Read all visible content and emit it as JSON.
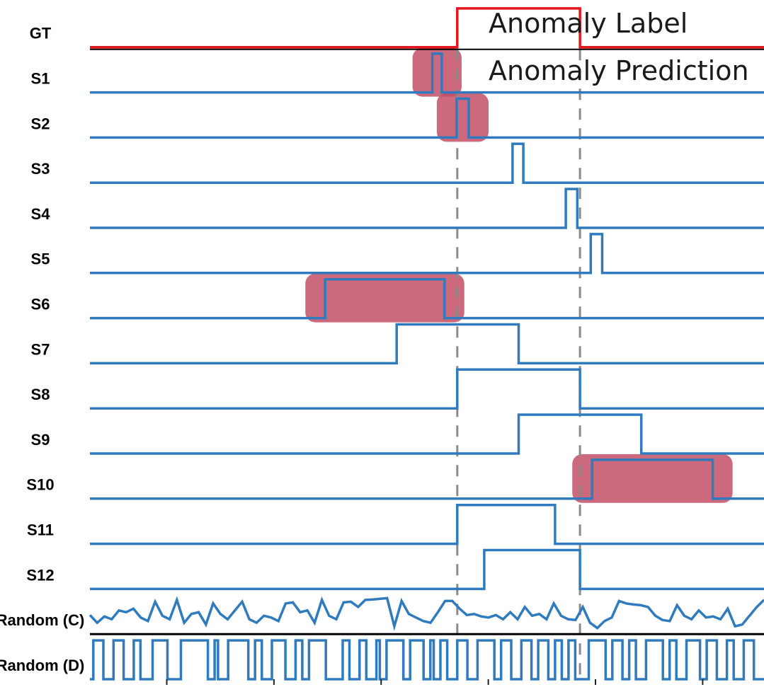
{
  "chart_data": {
    "type": "line",
    "style": "step",
    "legend": [
      {
        "label": "Anomaly Label",
        "color": "#e8141b"
      },
      {
        "label": "Anomaly Prediction",
        "color": "#2f7bbd"
      }
    ],
    "label_window": [
      0.545,
      0.727
    ],
    "highlight_color": "#c44f66",
    "series": [
      {
        "name": "GT",
        "color": "#e8141b",
        "intervals": [
          [
            0.545,
            0.727
          ]
        ]
      },
      {
        "name": "S1",
        "color": "#2f7bbd",
        "intervals": [
          [
            0.508,
            0.522
          ]
        ],
        "highlighted": true
      },
      {
        "name": "S2",
        "color": "#2f7bbd",
        "intervals": [
          [
            0.544,
            0.562
          ]
        ],
        "highlighted": true
      },
      {
        "name": "S3",
        "color": "#2f7bbd",
        "intervals": [
          [
            0.627,
            0.643
          ]
        ]
      },
      {
        "name": "S4",
        "color": "#2f7bbd",
        "intervals": [
          [
            0.706,
            0.723
          ]
        ]
      },
      {
        "name": "S5",
        "color": "#2f7bbd",
        "intervals": [
          [
            0.743,
            0.76
          ]
        ]
      },
      {
        "name": "S6",
        "color": "#2f7bbd",
        "intervals": [
          [
            0.349,
            0.526
          ]
        ],
        "highlighted": true
      },
      {
        "name": "S7",
        "color": "#2f7bbd",
        "intervals": [
          [
            0.455,
            0.636
          ]
        ]
      },
      {
        "name": "S8",
        "color": "#2f7bbd",
        "intervals": [
          [
            0.545,
            0.727
          ]
        ]
      },
      {
        "name": "S9",
        "color": "#2f7bbd",
        "intervals": [
          [
            0.636,
            0.818
          ]
        ]
      },
      {
        "name": "S10",
        "color": "#2f7bbd",
        "intervals": [
          [
            0.745,
            0.924
          ]
        ],
        "highlighted": true
      },
      {
        "name": "S11",
        "color": "#2f7bbd",
        "intervals": [
          [
            0.545,
            0.69
          ]
        ]
      },
      {
        "name": "S12",
        "color": "#2f7bbd",
        "intervals": [
          [
            0.585,
            0.727
          ]
        ]
      },
      {
        "name": "Random (C)",
        "color": "#2f7bbd",
        "kind": "continuous",
        "values": [
          0.42,
          0.2,
          0.38,
          0.3,
          0.55,
          0.5,
          0.6,
          0.35,
          0.25,
          0.8,
          0.4,
          0.3,
          0.85,
          0.2,
          0.45,
          0.5,
          0.15,
          0.75,
          0.45,
          0.3,
          0.55,
          0.8,
          0.3,
          0.2,
          0.4,
          0.35,
          0.25,
          0.75,
          0.78,
          0.5,
          0.55,
          0.2,
          0.85,
          0.4,
          0.3,
          0.78,
          0.8,
          0.65,
          0.85,
          0.86,
          0.88,
          0.9,
          0.1,
          0.82,
          0.45,
          0.35,
          0.25,
          0.2,
          0.5,
          0.82,
          0.82,
          0.6,
          0.42,
          0.45,
          0.38,
          0.35,
          0.42,
          0.3,
          0.5,
          0.3,
          0.65,
          0.4,
          0.45,
          0.3,
          0.75,
          0.4,
          0.3,
          0.28,
          0.65,
          0.2,
          0.05,
          0.25,
          0.35,
          0.82,
          0.75,
          0.72,
          0.7,
          0.65,
          0.4,
          0.28,
          0.25,
          0.7,
          0.4,
          0.3,
          0.55,
          0.35,
          0.38,
          0.3,
          0.6,
          0.1,
          0.15,
          0.4,
          0.65,
          0.85
        ]
      },
      {
        "name": "Random (D)",
        "color": "#2f7bbd",
        "kind": "binary",
        "intervals": [
          [
            0.005,
            0.02
          ],
          [
            0.035,
            0.05
          ],
          [
            0.065,
            0.075
          ],
          [
            0.093,
            0.115
          ],
          [
            0.135,
            0.175
          ],
          [
            0.185,
            0.19
          ],
          [
            0.205,
            0.235
          ],
          [
            0.245,
            0.255
          ],
          [
            0.27,
            0.29
          ],
          [
            0.305,
            0.315
          ],
          [
            0.325,
            0.35
          ],
          [
            0.375,
            0.385
          ],
          [
            0.4,
            0.41
          ],
          [
            0.425,
            0.43
          ],
          [
            0.44,
            0.465
          ],
          [
            0.475,
            0.495
          ],
          [
            0.505,
            0.51
          ],
          [
            0.52,
            0.53
          ],
          [
            0.545,
            0.56
          ],
          [
            0.575,
            0.6
          ],
          [
            0.61,
            0.625
          ],
          [
            0.64,
            0.655
          ],
          [
            0.665,
            0.68
          ],
          [
            0.69,
            0.7
          ],
          [
            0.71,
            0.72
          ],
          [
            0.74,
            0.765
          ],
          [
            0.775,
            0.79
          ],
          [
            0.8,
            0.81
          ],
          [
            0.825,
            0.85
          ],
          [
            0.86,
            0.87
          ],
          [
            0.885,
            0.905
          ],
          [
            0.915,
            0.93
          ],
          [
            0.945,
            0.955
          ],
          [
            0.97,
            0.985
          ]
        ]
      }
    ]
  }
}
